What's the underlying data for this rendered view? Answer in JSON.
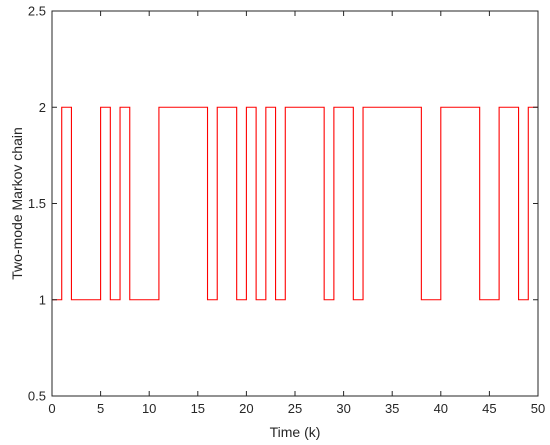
{
  "chart_data": {
    "type": "line",
    "step": true,
    "title": "",
    "xlabel": "Time (k)",
    "ylabel": "Two-mode Markov chain",
    "xlim": [
      0,
      50
    ],
    "ylim": [
      0.5,
      2.5
    ],
    "xticks": [
      0,
      5,
      10,
      15,
      20,
      25,
      30,
      35,
      40,
      45,
      50
    ],
    "yticks": [
      0.5,
      1,
      1.5,
      2,
      2.5
    ],
    "grid": false,
    "legend": "none",
    "series": [
      {
        "color": "#ff0000",
        "x": [
          0,
          1,
          2,
          5,
          6,
          7,
          8,
          11,
          16,
          17,
          19,
          20,
          21,
          22,
          23,
          24,
          28,
          29,
          31,
          32,
          38,
          40,
          44,
          46,
          48,
          49,
          50
        ],
        "y": [
          1,
          2,
          1,
          2,
          1,
          2,
          1,
          2,
          1,
          2,
          1,
          2,
          1,
          2,
          1,
          2,
          1,
          2,
          1,
          2,
          1,
          2,
          1,
          2,
          1,
          2,
          2
        ]
      }
    ]
  }
}
